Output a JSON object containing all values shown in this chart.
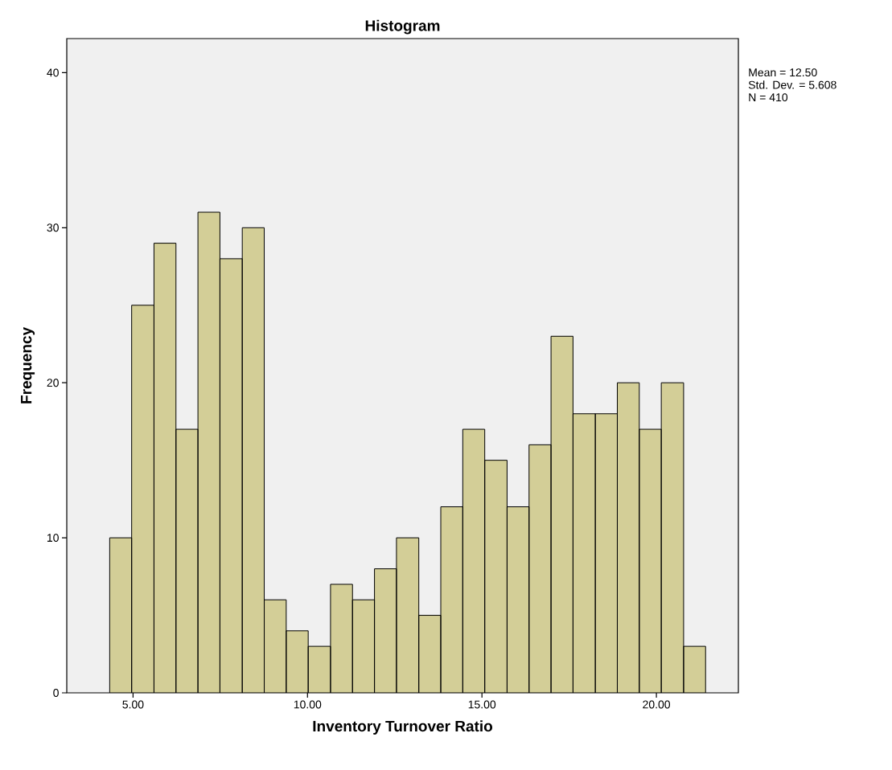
{
  "chart_data": {
    "type": "histogram",
    "title": "Histogram",
    "xlabel": "Inventory Turnover Ratio",
    "ylabel": "Frequency",
    "bins": [
      4.33,
      4.96,
      5.6,
      6.23,
      6.86,
      7.49,
      8.13,
      8.76,
      9.39,
      10.02,
      10.66,
      11.29,
      11.92,
      12.55,
      13.19,
      13.82,
      14.45,
      15.08,
      15.72,
      16.35,
      16.98,
      17.61,
      18.25,
      18.88,
      19.51,
      20.14,
      20.78,
      21.41
    ],
    "values": [
      10,
      25,
      29,
      17,
      31,
      28,
      30,
      6,
      4,
      3,
      7,
      6,
      8,
      10,
      5,
      12,
      17,
      15,
      12,
      16,
      23,
      18,
      18,
      20,
      17,
      20,
      3
    ],
    "color": "#d3ce97",
    "xlim": [
      3.1,
      22.35
    ],
    "ylim": [
      0,
      42.2
    ],
    "xticks": [
      {
        "value": 5,
        "label": "5.00"
      },
      {
        "value": 10,
        "label": "10.00"
      },
      {
        "value": 15,
        "label": "15.00"
      },
      {
        "value": 20,
        "label": "20.00"
      }
    ],
    "yticks": [
      0,
      10,
      20,
      30,
      40
    ],
    "annotations": [
      "Mean = 12.50",
      "Std. Dev. = 5.608",
      "N = 410"
    ]
  }
}
